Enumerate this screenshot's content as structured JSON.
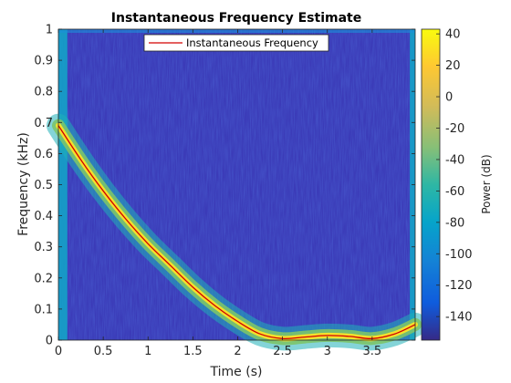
{
  "chart_data": {
    "type": "heatmap",
    "title": "Instantaneous Frequency Estimate",
    "xlabel": "Time (s)",
    "ylabel": "Frequency (kHz)",
    "xlim": [
      0,
      3.98
    ],
    "ylim": [
      0,
      1
    ],
    "x_ticks": [
      0,
      0.5,
      1,
      1.5,
      2,
      2.5,
      3,
      3.5
    ],
    "x_tick_labels": [
      "0",
      "0.5",
      "1",
      "1.5",
      "2",
      "2.5",
      "3",
      "3.5"
    ],
    "y_ticks": [
      0,
      0.1,
      0.2,
      0.3,
      0.4,
      0.5,
      0.6,
      0.7,
      0.8,
      0.9,
      1
    ],
    "y_tick_labels": [
      "0",
      "0.1",
      "0.2",
      "0.3",
      "0.4",
      "0.5",
      "0.6",
      "0.7",
      "0.8",
      "0.9",
      "1"
    ],
    "colorbar": {
      "label": "Power (dB)",
      "range": [
        -155,
        43
      ],
      "ticks": [
        40,
        20,
        0,
        -20,
        -40,
        -60,
        -80,
        -100,
        -120,
        -140
      ],
      "tick_labels": [
        "40",
        "20",
        "0",
        "-20",
        "-40",
        "-60",
        "-80",
        "-100",
        "-120",
        "-140"
      ],
      "colormap": "parula"
    },
    "series": [
      {
        "name": "Instantaneous Frequency",
        "color": "#d40000",
        "x": [
          0,
          0.25,
          0.5,
          0.75,
          1,
          1.25,
          1.5,
          1.75,
          2,
          2.25,
          2.5,
          2.75,
          3,
          3.25,
          3.5,
          3.75,
          3.98
        ],
        "y": [
          0.69,
          0.58,
          0.48,
          0.39,
          0.31,
          0.24,
          0.17,
          0.11,
          0.06,
          0.02,
          0.005,
          0.01,
          0.015,
          0.012,
          0.005,
          0.02,
          0.05
        ]
      }
    ],
    "legend": {
      "position": "top-center",
      "entries": [
        "Instantaneous Frequency"
      ]
    },
    "grid": false
  }
}
